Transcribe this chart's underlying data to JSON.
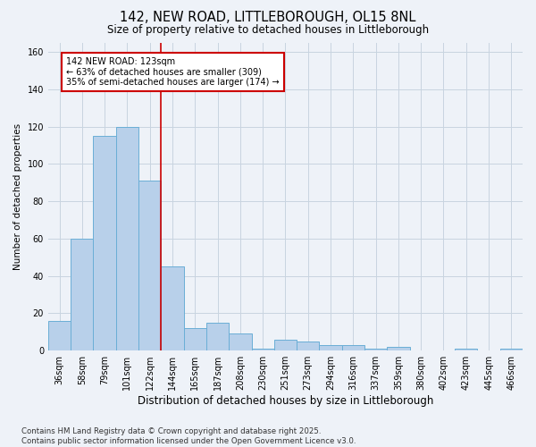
{
  "title1": "142, NEW ROAD, LITTLEBOROUGH, OL15 8NL",
  "title2": "Size of property relative to detached houses in Littleborough",
  "xlabel": "Distribution of detached houses by size in Littleborough",
  "ylabel": "Number of detached properties",
  "categories": [
    "36sqm",
    "58sqm",
    "79sqm",
    "101sqm",
    "122sqm",
    "144sqm",
    "165sqm",
    "187sqm",
    "208sqm",
    "230sqm",
    "251sqm",
    "273sqm",
    "294sqm",
    "316sqm",
    "337sqm",
    "359sqm",
    "380sqm",
    "402sqm",
    "423sqm",
    "445sqm",
    "466sqm"
  ],
  "values": [
    16,
    60,
    115,
    120,
    91,
    45,
    12,
    15,
    9,
    1,
    6,
    5,
    3,
    3,
    1,
    2,
    0,
    0,
    1,
    0,
    1
  ],
  "bar_color": "#b8d0ea",
  "bar_edge_color": "#6aaed6",
  "annotation_text_line1": "142 NEW ROAD: 123sqm",
  "annotation_text_line2": "← 63% of detached houses are smaller (309)",
  "annotation_text_line3": "35% of semi-detached houses are larger (174) →",
  "annotation_box_color": "#ffffff",
  "annotation_box_edge": "#cc0000",
  "vline_color": "#cc0000",
  "grid_color": "#c8d4e0",
  "background_color": "#eef2f8",
  "footer": "Contains HM Land Registry data © Crown copyright and database right 2025.\nContains public sector information licensed under the Open Government Licence v3.0.",
  "ylim_max": 165,
  "vline_x": 4.5
}
